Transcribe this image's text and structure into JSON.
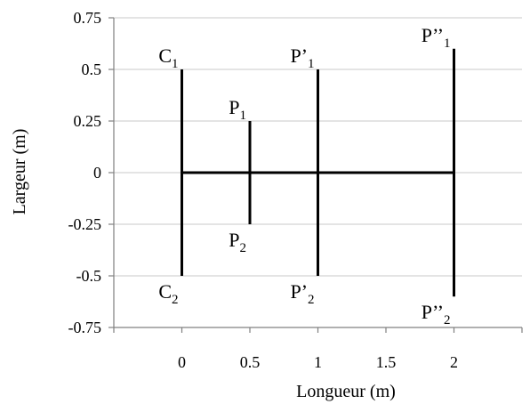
{
  "chart_data": {
    "type": "line",
    "title": "",
    "xlabel": "Longueur (m)",
    "ylabel": "Largeur (m)",
    "xlim": [
      -0.5,
      2.5
    ],
    "ylim": [
      -0.75,
      0.75
    ],
    "grid": "horizontal",
    "x_ticks": [
      0,
      0.5,
      1,
      1.5,
      2
    ],
    "x_tick_labels": [
      "0",
      "0.5",
      "1",
      "1.5",
      "2"
    ],
    "y_ticks": [
      0.75,
      0.5,
      0.25,
      0,
      -0.25,
      -0.5,
      -0.75
    ],
    "y_tick_labels": [
      "0.75",
      "0.5",
      "0.25",
      "0",
      "-0.25",
      "-0.5",
      "-0.75"
    ],
    "segments": [
      {
        "id": "center-axis",
        "x": [
          0,
          2
        ],
        "y": [
          0,
          0
        ]
      },
      {
        "id": "c1-c2",
        "x": [
          0,
          0
        ],
        "y": [
          0.5,
          -0.5
        ]
      },
      {
        "id": "p1-p2",
        "x": [
          0.5,
          0.5
        ],
        "y": [
          0.25,
          -0.25
        ]
      },
      {
        "id": "p1prime-p2prime",
        "x": [
          1,
          1
        ],
        "y": [
          0.5,
          -0.5
        ]
      },
      {
        "id": "p1double-p2double",
        "x": [
          2,
          2
        ],
        "y": [
          0.6,
          -0.6
        ]
      }
    ],
    "points": [
      {
        "label": "C",
        "sub": "1",
        "x": 0,
        "y": 0.5,
        "pos": "above-left"
      },
      {
        "label": "C",
        "sub": "2",
        "x": 0,
        "y": -0.5,
        "pos": "below-left"
      },
      {
        "label": "P",
        "sub": "1",
        "x": 0.5,
        "y": 0.25,
        "pos": "above-left"
      },
      {
        "label": "P",
        "sub": "2",
        "x": 0.5,
        "y": -0.25,
        "pos": "below-left"
      },
      {
        "label": "P’",
        "sub": "1",
        "x": 1,
        "y": 0.5,
        "pos": "above-left"
      },
      {
        "label": "P’",
        "sub": "2",
        "x": 1,
        "y": -0.5,
        "pos": "below-left"
      },
      {
        "label": "P’’",
        "sub": "1",
        "x": 2,
        "y": 0.6,
        "pos": "above-left"
      },
      {
        "label": "P’’",
        "sub": "2",
        "x": 2,
        "y": -0.6,
        "pos": "below-left"
      }
    ]
  }
}
